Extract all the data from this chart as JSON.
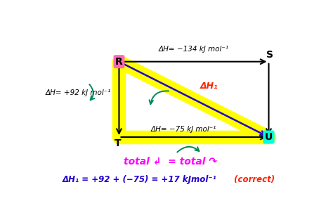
{
  "bg_color": "#ffffff",
  "R": [
    0.3,
    0.78
  ],
  "S": [
    0.88,
    0.78
  ],
  "T": [
    0.3,
    0.32
  ],
  "U": [
    0.88,
    0.32
  ],
  "arrow_RS_label": "ΔH= −134 kJ mol⁻¹",
  "arrow_RT_label": "ΔH= +92 kJ mol⁻¹",
  "arrow_TU_label": "ΔH= −75 kJ mol⁻¹",
  "arrow_RU_label": "ΔH₁",
  "text_total": "total ↲  = total ↷",
  "text_equation": "ΔH₁ = +92 + (−75) = +17 kJmol⁻¹  (correct)",
  "text_eq_blue": "ΔH₁ = +92 + (−75) = +17 kJmol⁻¹",
  "text_correct": " (correct)",
  "yellow_color": "#ffff00",
  "node_R_color": "#ff69b4",
  "node_U_color": "#00ffdd",
  "arrow_color": "#000000",
  "dH1_color": "#ff2200",
  "dH1_line_color": "#2200cc",
  "green_color": "#008855",
  "text_total_color": "#ff00ff",
  "text_eq_color": "#2200cc",
  "text_correct_color": "#ff2200"
}
